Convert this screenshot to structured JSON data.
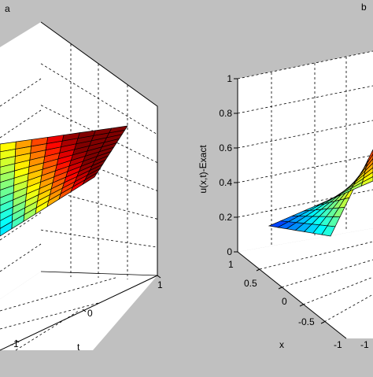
{
  "chart_data": [
    {
      "type": "surface",
      "panel_label": "a",
      "t_axis": {
        "label": "t",
        "ticks": [
          "-1",
          "0",
          "1"
        ]
      },
      "z_range": [
        0,
        1
      ],
      "grid": true,
      "colormap": "jet",
      "surface_z_range_visible": [
        0.3,
        0.9
      ]
    },
    {
      "type": "surface",
      "panel_label": "b",
      "z_axis": {
        "label": "u(x,t)-Exact",
        "ticks": [
          "0",
          "0.2",
          "0.4",
          "0.6",
          "0.8",
          "1"
        ]
      },
      "x_axis": {
        "label": "x",
        "ticks": [
          "1",
          "0.5",
          "0",
          "-0.5",
          "-1"
        ]
      },
      "t_axis": {
        "ticks": [
          "-1"
        ]
      },
      "z_range": [
        0,
        1
      ],
      "grid": true,
      "colormap": "jet",
      "surface_z_range_visible": [
        0.15,
        0.55
      ]
    }
  ],
  "colors": {
    "background": "#c0c0c0",
    "axes_face": "#ffffff",
    "grid": "#000000"
  }
}
